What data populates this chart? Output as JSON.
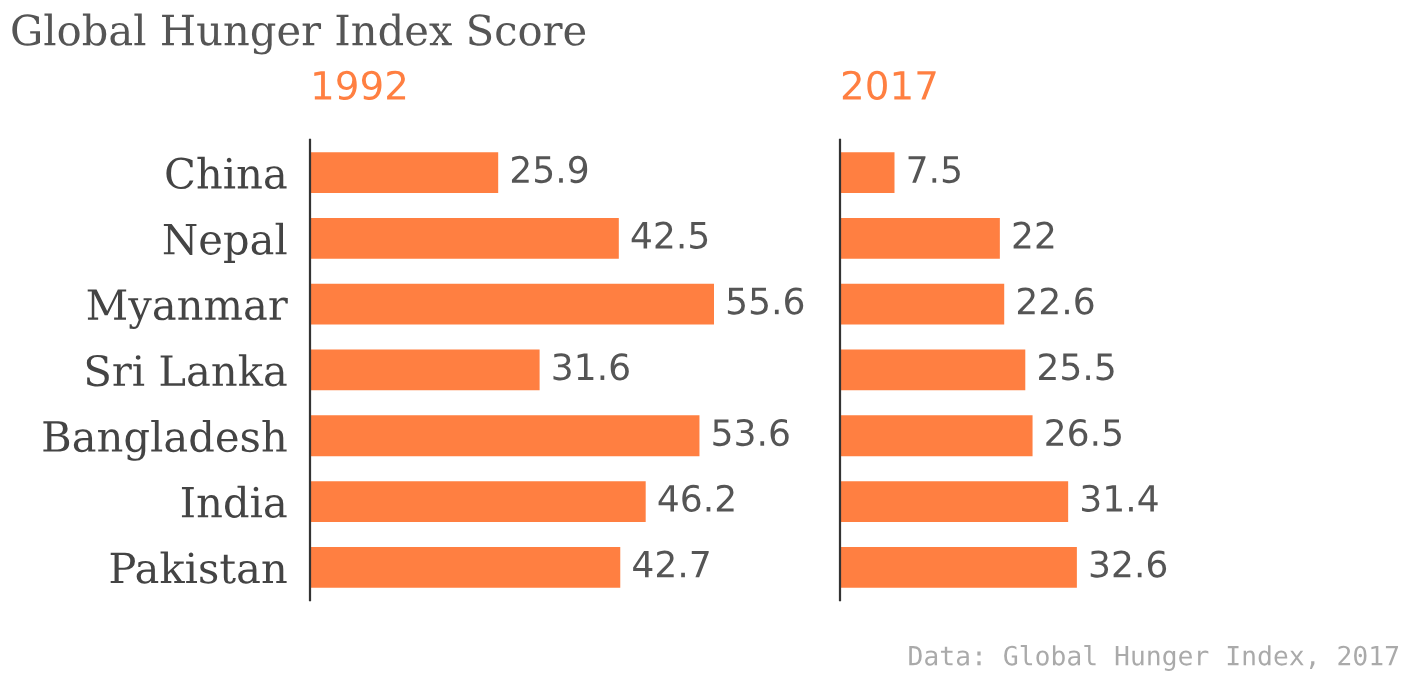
{
  "chart_data": [
    {
      "type": "bar",
      "orientation": "horizontal",
      "title": "Global Hunger Index Score",
      "subtitle": "1992",
      "categories": [
        "China",
        "Nepal",
        "Myanmar",
        "Sri Lanka",
        "Bangladesh",
        "India",
        "Pakistan"
      ],
      "values": [
        25.9,
        42.5,
        55.6,
        31.6,
        53.6,
        46.2,
        42.7
      ],
      "color": "#ff7f41",
      "data_labels": true,
      "tick_labels": "y",
      "grid": false
    },
    {
      "type": "bar",
      "orientation": "horizontal",
      "subtitle": "2017",
      "categories": [
        null,
        null,
        null,
        null,
        null,
        null,
        null
      ],
      "values": [
        7.5,
        22,
        22.6,
        25.5,
        26.5,
        31.4,
        32.6
      ],
      "color": "#ff7f41",
      "data_labels": true,
      "tick_labels": false,
      "grid": false,
      "annotations": [
        "Data: Global Hunger Index, 2017"
      ]
    }
  ]
}
